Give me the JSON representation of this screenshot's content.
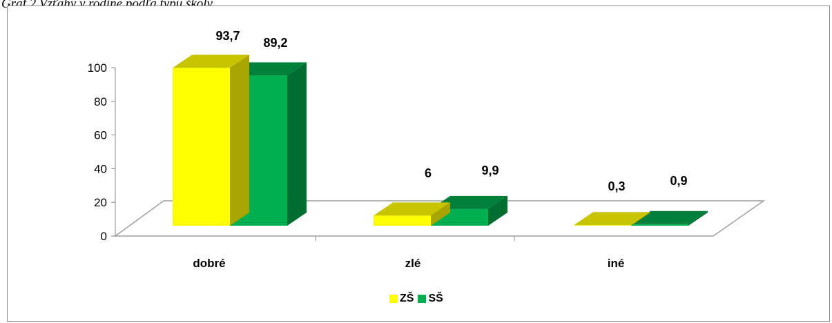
{
  "caption": "Graf 2 Vzťahy v rodine podľa typu školy",
  "chart_data": {
    "type": "bar",
    "style": "3d-clustered-column",
    "categories": [
      "dobré",
      "zlé",
      "iné"
    ],
    "series": [
      {
        "name": "ZŠ",
        "values": [
          93.7,
          6,
          0.3
        ],
        "value_labels": [
          "93,7",
          "6",
          "0,3"
        ],
        "color": "#FFFF00",
        "top_color": "#C8C400",
        "side_color": "#A8A400"
      },
      {
        "name": "SŠ",
        "values": [
          89.2,
          9.9,
          0.9
        ],
        "value_labels": [
          "89,2",
          "9,9",
          "0,9"
        ],
        "color": "#00B050",
        "top_color": "#00803A",
        "side_color": "#006E30"
      }
    ],
    "y_ticks": [
      "0",
      "20",
      "40",
      "60",
      "80",
      "100"
    ],
    "ylim": [
      0,
      100
    ],
    "grid": false,
    "legend_position": "bottom"
  }
}
